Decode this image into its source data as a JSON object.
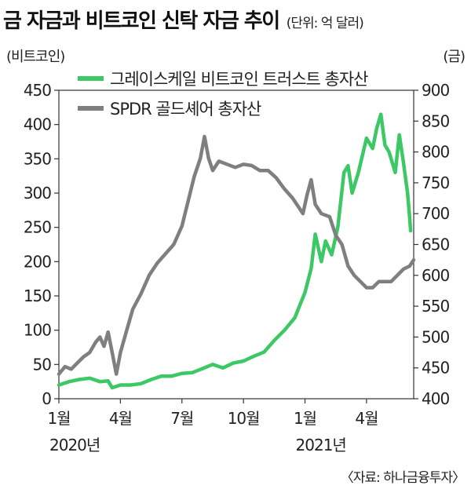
{
  "header": {
    "title": "금 자금과 비트코인 신탁 자금 추이",
    "unit": "(단위: 억 달러)"
  },
  "source": "〈자료: 하나금융투자〉",
  "colors": {
    "btc": "#3cc865",
    "gold": "#7f7f7f",
    "axis": "#333333",
    "grid": "#dddddd"
  },
  "chart_data": {
    "type": "line",
    "title": "금 자금과 비트코인 신탁 자금 추이",
    "unit": "(단위: 억 달러)",
    "grid": false,
    "legend_position": "top-center",
    "x_ticks": [
      {
        "month": 0,
        "label": "1월",
        "year": "2020년"
      },
      {
        "month": 3,
        "label": "4월",
        "year": ""
      },
      {
        "month": 6,
        "label": "7월",
        "year": ""
      },
      {
        "month": 9,
        "label": "10월",
        "year": ""
      },
      {
        "month": 12,
        "label": "1월",
        "year": "2021년"
      },
      {
        "month": 15,
        "label": "4월",
        "year": ""
      }
    ],
    "xlim": [
      0,
      17.3
    ],
    "y_left": {
      "label": "(비트코인)",
      "ylim": [
        0,
        450
      ],
      "ticks": [
        0,
        50,
        100,
        150,
        200,
        250,
        300,
        350,
        400,
        450
      ]
    },
    "y_right": {
      "label": "(금)",
      "ylim": [
        400,
        900
      ],
      "ticks": [
        400,
        450,
        500,
        550,
        600,
        650,
        700,
        750,
        800,
        850,
        900
      ]
    },
    "series": [
      {
        "name": "그레이스케일 비트코인 트러스트 총자산",
        "axis": "left",
        "color": "#3cc865",
        "points": [
          [
            0.0,
            20
          ],
          [
            0.5,
            25
          ],
          [
            1.0,
            28
          ],
          [
            1.5,
            30
          ],
          [
            2.0,
            25
          ],
          [
            2.4,
            26
          ],
          [
            2.6,
            16
          ],
          [
            3.0,
            20
          ],
          [
            3.5,
            20
          ],
          [
            4.0,
            22
          ],
          [
            4.5,
            28
          ],
          [
            5.0,
            33
          ],
          [
            5.5,
            33
          ],
          [
            6.0,
            37
          ],
          [
            6.5,
            38
          ],
          [
            7.0,
            44
          ],
          [
            7.5,
            50
          ],
          [
            8.0,
            45
          ],
          [
            8.5,
            52
          ],
          [
            9.0,
            55
          ],
          [
            9.5,
            62
          ],
          [
            10.0,
            68
          ],
          [
            10.5,
            85
          ],
          [
            11.0,
            100
          ],
          [
            11.5,
            118
          ],
          [
            12.0,
            155
          ],
          [
            12.3,
            190
          ],
          [
            12.5,
            240
          ],
          [
            12.8,
            200
          ],
          [
            13.0,
            230
          ],
          [
            13.3,
            210
          ],
          [
            13.6,
            250
          ],
          [
            13.9,
            330
          ],
          [
            14.1,
            340
          ],
          [
            14.3,
            300
          ],
          [
            14.6,
            330
          ],
          [
            15.0,
            380
          ],
          [
            15.3,
            365
          ],
          [
            15.5,
            395
          ],
          [
            15.7,
            415
          ],
          [
            15.9,
            370
          ],
          [
            16.1,
            360
          ],
          [
            16.4,
            330
          ],
          [
            16.6,
            385
          ],
          [
            16.8,
            345
          ],
          [
            17.0,
            300
          ],
          [
            17.1,
            265
          ],
          [
            17.15,
            245
          ]
        ]
      },
      {
        "name": "SPDR 골드셰어 총자산",
        "axis": "right",
        "color": "#7f7f7f",
        "points": [
          [
            0.0,
            440
          ],
          [
            0.3,
            452
          ],
          [
            0.6,
            448
          ],
          [
            0.9,
            458
          ],
          [
            1.2,
            468
          ],
          [
            1.5,
            475
          ],
          [
            1.8,
            492
          ],
          [
            2.0,
            500
          ],
          [
            2.2,
            485
          ],
          [
            2.4,
            508
          ],
          [
            2.6,
            475
          ],
          [
            2.8,
            440
          ],
          [
            3.0,
            475
          ],
          [
            3.3,
            510
          ],
          [
            3.6,
            545
          ],
          [
            4.0,
            570
          ],
          [
            4.4,
            600
          ],
          [
            4.8,
            620
          ],
          [
            5.2,
            635
          ],
          [
            5.6,
            650
          ],
          [
            6.0,
            680
          ],
          [
            6.3,
            720
          ],
          [
            6.6,
            760
          ],
          [
            6.9,
            790
          ],
          [
            7.1,
            825
          ],
          [
            7.3,
            790
          ],
          [
            7.5,
            770
          ],
          [
            7.8,
            785
          ],
          [
            8.2,
            780
          ],
          [
            8.6,
            775
          ],
          [
            9.0,
            780
          ],
          [
            9.4,
            778
          ],
          [
            9.8,
            770
          ],
          [
            10.2,
            770
          ],
          [
            10.6,
            758
          ],
          [
            11.0,
            740
          ],
          [
            11.4,
            725
          ],
          [
            11.7,
            710
          ],
          [
            11.9,
            700
          ],
          [
            12.1,
            730
          ],
          [
            12.3,
            755
          ],
          [
            12.5,
            715
          ],
          [
            12.8,
            700
          ],
          [
            13.2,
            695
          ],
          [
            13.5,
            665
          ],
          [
            13.8,
            650
          ],
          [
            14.1,
            615
          ],
          [
            14.4,
            600
          ],
          [
            14.7,
            590
          ],
          [
            15.0,
            580
          ],
          [
            15.3,
            580
          ],
          [
            15.6,
            590
          ],
          [
            15.9,
            590
          ],
          [
            16.2,
            590
          ],
          [
            16.5,
            600
          ],
          [
            16.8,
            610
          ],
          [
            17.1,
            615
          ],
          [
            17.3,
            625
          ]
        ]
      }
    ]
  }
}
